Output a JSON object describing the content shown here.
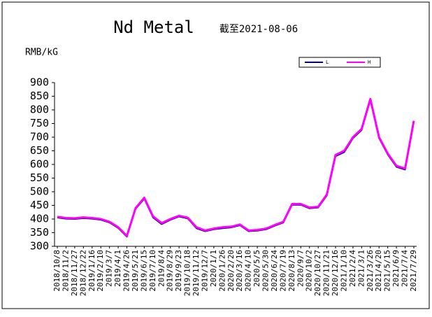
{
  "chart_data": {
    "type": "line",
    "title": "Nd Metal",
    "subtitle": "截至2021-08-06",
    "y_label": "RMB/kG",
    "categories": [
      "2018/10/8",
      "2018/11/2",
      "2018/11/27",
      "2018/12/22",
      "2019/1/16",
      "2019/2/10",
      "2019/3/7",
      "2019/4/1",
      "2019/4/26",
      "2019/5/21",
      "2019/6/15",
      "2019/7/10",
      "2019/8/4",
      "2019/8/29",
      "2019/9/23",
      "2019/10/18",
      "2019/11/12",
      "2019/12/7",
      "2020/1/1",
      "2020/1/26",
      "2020/2/20",
      "2020/3/16",
      "2020/4/10",
      "2020/5/5",
      "2020/5/30",
      "2020/6/24",
      "2020/7/19",
      "2020/8/13",
      "2020/9/7",
      "2020/10/2",
      "2020/10/27",
      "2020/11/21",
      "2020/12/16",
      "2021/1/10",
      "2021/2/4",
      "2021/3/1",
      "2021/3/26",
      "2021/4/20",
      "2021/5/15",
      "2021/6/9",
      "2021/7/4",
      "2021/7/29"
    ],
    "series": [
      {
        "name": "L",
        "color": "#000080",
        "values": [
          405,
          401,
          400,
          403,
          401,
          397,
          387,
          367,
          335,
          437,
          474,
          406,
          381,
          397,
          409,
          402,
          366,
          355,
          362,
          366,
          369,
          377,
          355,
          357,
          362,
          375,
          387,
          452,
          452,
          439,
          442,
          486,
          630,
          645,
          696,
          726,
          835,
          696,
          636,
          591,
          581,
          755
        ]
      },
      {
        "name": "H",
        "color": "#ff00ff",
        "values": [
          408,
          404,
          403,
          406,
          404,
          400,
          390,
          370,
          338,
          440,
          478,
          410,
          385,
          400,
          412,
          405,
          370,
          358,
          365,
          370,
          372,
          380,
          358,
          360,
          365,
          378,
          390,
          455,
          455,
          442,
          445,
          490,
          635,
          650,
          700,
          730,
          840,
          700,
          640,
          595,
          585,
          760
        ]
      }
    ],
    "ylim": [
      300,
      900
    ],
    "yticks": [
      300,
      350,
      400,
      450,
      500,
      550,
      600,
      650,
      700,
      750,
      800,
      850,
      900
    ],
    "legend": "top-right",
    "grid": false
  }
}
